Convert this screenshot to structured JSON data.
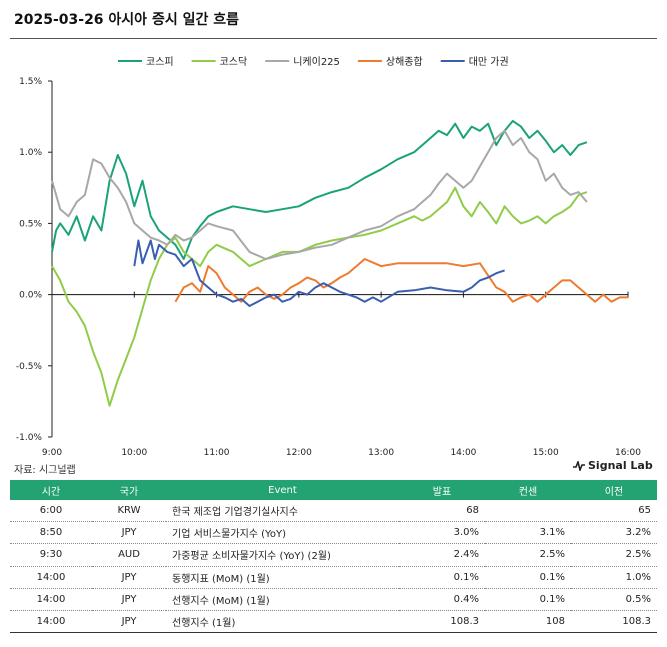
{
  "header": {
    "title": "2025-03-26 아시아 증시 일간 흐름"
  },
  "source": "자료: 시그널랩",
  "brand": "Signal Lab",
  "chart_data": {
    "type": "line",
    "x_ticks": [
      "9:00",
      "10:00",
      "11:00",
      "12:00",
      "13:00",
      "14:00",
      "15:00",
      "16:00"
    ],
    "y_ticks": [
      "1.5%",
      "1.0%",
      "0.5%",
      "0.0%",
      "-0.5%",
      "-1.0%"
    ],
    "ylim": [
      -1.0,
      1.5
    ],
    "x_unit": "hour",
    "xlim": [
      9,
      16
    ],
    "legend_position": "top",
    "series": [
      {
        "name": "코스피",
        "color": "#1aa37a",
        "x": [
          9.0,
          9.05,
          9.1,
          9.2,
          9.3,
          9.4,
          9.5,
          9.6,
          9.7,
          9.8,
          9.9,
          10.0,
          10.1,
          10.2,
          10.3,
          10.4,
          10.5,
          10.6,
          10.7,
          10.8,
          10.9,
          11.0,
          11.2,
          11.4,
          11.6,
          11.8,
          12.0,
          12.2,
          12.4,
          12.6,
          12.8,
          13.0,
          13.2,
          13.4,
          13.5,
          13.6,
          13.7,
          13.8,
          13.9,
          14.0,
          14.1,
          14.2,
          14.3,
          14.4,
          14.5,
          14.6,
          14.7,
          14.8,
          14.9,
          15.0,
          15.1,
          15.2,
          15.3,
          15.4,
          15.5
        ],
        "values": [
          0.3,
          0.45,
          0.5,
          0.42,
          0.55,
          0.38,
          0.55,
          0.45,
          0.8,
          0.98,
          0.85,
          0.62,
          0.8,
          0.55,
          0.45,
          0.4,
          0.35,
          0.25,
          0.4,
          0.48,
          0.55,
          0.58,
          0.62,
          0.6,
          0.58,
          0.6,
          0.62,
          0.68,
          0.72,
          0.75,
          0.82,
          0.88,
          0.95,
          1.0,
          1.05,
          1.1,
          1.15,
          1.12,
          1.2,
          1.1,
          1.18,
          1.15,
          1.2,
          1.05,
          1.15,
          1.22,
          1.18,
          1.1,
          1.15,
          1.08,
          1.0,
          1.05,
          0.98,
          1.05,
          1.07
        ]
      },
      {
        "name": "코스닥",
        "color": "#90cc4a",
        "x": [
          9.0,
          9.05,
          9.1,
          9.2,
          9.3,
          9.4,
          9.5,
          9.6,
          9.7,
          9.8,
          9.9,
          10.0,
          10.1,
          10.2,
          10.3,
          10.4,
          10.5,
          10.6,
          10.7,
          10.8,
          10.9,
          11.0,
          11.2,
          11.4,
          11.6,
          11.8,
          12.0,
          12.2,
          12.4,
          12.6,
          12.8,
          13.0,
          13.2,
          13.4,
          13.5,
          13.6,
          13.7,
          13.8,
          13.9,
          14.0,
          14.1,
          14.2,
          14.3,
          14.4,
          14.5,
          14.6,
          14.7,
          14.8,
          14.9,
          15.0,
          15.1,
          15.2,
          15.3,
          15.4,
          15.5
        ],
        "values": [
          0.2,
          0.15,
          0.1,
          -0.05,
          -0.12,
          -0.22,
          -0.4,
          -0.55,
          -0.78,
          -0.6,
          -0.45,
          -0.3,
          -0.1,
          0.1,
          0.25,
          0.35,
          0.4,
          0.3,
          0.25,
          0.2,
          0.3,
          0.35,
          0.3,
          0.2,
          0.25,
          0.3,
          0.3,
          0.35,
          0.38,
          0.4,
          0.42,
          0.45,
          0.5,
          0.55,
          0.52,
          0.55,
          0.6,
          0.65,
          0.75,
          0.62,
          0.55,
          0.65,
          0.58,
          0.5,
          0.62,
          0.55,
          0.5,
          0.52,
          0.55,
          0.5,
          0.55,
          0.58,
          0.62,
          0.7,
          0.72
        ]
      },
      {
        "name": "니케이225",
        "color": "#a8a8a8",
        "x": [
          9.0,
          9.05,
          9.1,
          9.2,
          9.3,
          9.4,
          9.5,
          9.6,
          9.7,
          9.8,
          9.9,
          10.0,
          10.1,
          10.2,
          10.3,
          10.4,
          10.5,
          10.6,
          10.7,
          10.8,
          10.9,
          11.0,
          11.2,
          11.4,
          11.6,
          11.8,
          12.0,
          12.2,
          12.4,
          12.6,
          12.8,
          13.0,
          13.2,
          13.4,
          13.5,
          13.6,
          13.7,
          13.8,
          13.9,
          14.0,
          14.1,
          14.2,
          14.3,
          14.4,
          14.5,
          14.6,
          14.7,
          14.8,
          14.9,
          15.0,
          15.1,
          15.2,
          15.3,
          15.4,
          15.5
        ],
        "values": [
          0.8,
          0.7,
          0.6,
          0.55,
          0.65,
          0.7,
          0.95,
          0.92,
          0.82,
          0.75,
          0.65,
          0.5,
          0.45,
          0.4,
          0.38,
          0.35,
          0.42,
          0.38,
          0.4,
          0.45,
          0.5,
          0.48,
          0.45,
          0.3,
          0.25,
          0.28,
          0.3,
          0.33,
          0.35,
          0.4,
          0.45,
          0.48,
          0.55,
          0.6,
          0.65,
          0.7,
          0.78,
          0.85,
          0.8,
          0.75,
          0.8,
          0.9,
          1.0,
          1.1,
          1.15,
          1.05,
          1.1,
          1.0,
          0.95,
          0.8,
          0.85,
          0.75,
          0.7,
          0.72,
          0.65
        ]
      },
      {
        "name": "상해종합",
        "color": "#ee7b2f",
        "x": [
          10.5,
          10.6,
          10.7,
          10.8,
          10.9,
          11.0,
          11.1,
          11.2,
          11.3,
          11.4,
          11.5,
          11.6,
          11.7,
          11.8,
          11.9,
          12.0,
          12.1,
          12.2,
          12.3,
          12.4,
          12.5,
          12.6,
          12.7,
          12.8,
          13.0,
          13.2,
          13.4,
          13.6,
          13.8,
          14.0,
          14.2,
          14.4,
          14.5,
          14.6,
          14.7,
          14.8,
          14.9,
          15.0,
          15.1,
          15.2,
          15.3,
          15.4,
          15.5,
          15.6,
          15.7,
          15.8,
          15.9,
          16.0
        ],
        "values": [
          -0.05,
          0.05,
          0.08,
          0.02,
          0.2,
          0.15,
          0.05,
          0.0,
          -0.05,
          0.02,
          0.05,
          0.0,
          -0.03,
          0.0,
          0.05,
          0.08,
          0.12,
          0.1,
          0.05,
          0.08,
          0.12,
          0.15,
          0.2,
          0.25,
          0.2,
          0.22,
          0.22,
          0.22,
          0.22,
          0.2,
          0.22,
          0.05,
          0.02,
          -0.05,
          -0.02,
          0.0,
          -0.05,
          0.0,
          0.05,
          0.1,
          0.1,
          0.05,
          0.0,
          -0.05,
          0.0,
          -0.05,
          -0.02,
          -0.02
        ]
      },
      {
        "name": "대만 가권",
        "color": "#3a5fb0",
        "x": [
          10.0,
          10.05,
          10.1,
          10.15,
          10.2,
          10.25,
          10.3,
          10.4,
          10.5,
          10.6,
          10.7,
          10.8,
          10.9,
          11.0,
          11.1,
          11.2,
          11.3,
          11.4,
          11.5,
          11.6,
          11.7,
          11.8,
          11.9,
          12.0,
          12.1,
          12.2,
          12.3,
          12.4,
          12.5,
          12.6,
          12.7,
          12.8,
          12.9,
          13.0,
          13.2,
          13.4,
          13.6,
          13.8,
          14.0,
          14.1,
          14.2,
          14.3,
          14.4,
          14.5
        ],
        "values": [
          0.2,
          0.38,
          0.22,
          0.3,
          0.38,
          0.25,
          0.35,
          0.3,
          0.28,
          0.2,
          0.25,
          0.1,
          0.05,
          0.0,
          -0.02,
          -0.05,
          -0.03,
          -0.08,
          -0.05,
          -0.02,
          0.0,
          -0.05,
          -0.03,
          0.02,
          0.0,
          0.05,
          0.08,
          0.05,
          0.02,
          0.0,
          -0.02,
          -0.05,
          -0.02,
          -0.05,
          0.02,
          0.03,
          0.05,
          0.03,
          0.02,
          0.05,
          0.1,
          0.12,
          0.15,
          0.17
        ]
      }
    ]
  },
  "table": {
    "headers": [
      "시간",
      "국가",
      "Event",
      "발표",
      "컨센",
      "이전"
    ],
    "rows": [
      [
        "6:00",
        "KRW",
        "한국 제조업 기업경기실사지수",
        "68",
        "",
        "65"
      ],
      [
        "8:50",
        "JPY",
        "기업 서비스물가지수 (YoY)",
        "3.0%",
        "3.1%",
        "3.2%"
      ],
      [
        "9:30",
        "AUD",
        "가중평균 소비자물가지수 (YoY) (2월)",
        "2.4%",
        "2.5%",
        "2.5%"
      ],
      [
        "14:00",
        "JPY",
        "동행지표 (MoM) (1월)",
        "0.1%",
        "0.1%",
        "1.0%"
      ],
      [
        "14:00",
        "JPY",
        "선행지수 (MoM) (1월)",
        "0.4%",
        "0.1%",
        "0.5%"
      ],
      [
        "14:00",
        "JPY",
        "선행지수 (1월)",
        "108.3",
        "108",
        "108.3"
      ]
    ]
  }
}
